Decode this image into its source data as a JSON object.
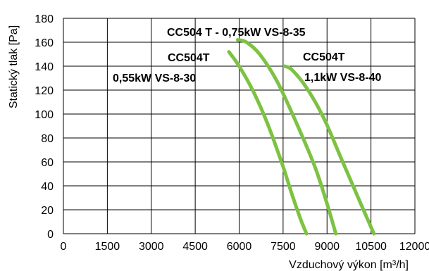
{
  "chart_data": {
    "type": "line",
    "xlabel": "Vzduchový výkon [m³/h]",
    "ylabel": "Statický tlak [Pa]",
    "xlim": [
      0,
      12000
    ],
    "ylim": [
      0,
      180
    ],
    "xticks": [
      0,
      1500,
      3000,
      4500,
      6000,
      7500,
      9000,
      10500,
      12000
    ],
    "yticks": [
      0,
      20,
      40,
      60,
      80,
      100,
      120,
      140,
      160,
      180
    ],
    "grid": true,
    "line_color": "#7dc242",
    "series": [
      {
        "name_lines": [
          "CC504T",
          "0,55kW VS-8-30"
        ],
        "x": [
          5650,
          6000,
          6500,
          7000,
          7500,
          7800,
          8100,
          8300
        ],
        "y": [
          152,
          140,
          118,
          90,
          56,
          33,
          12,
          0
        ]
      },
      {
        "name_lines": [
          "CC504 T - 0,75kW VS-8-35"
        ],
        "x": [
          5950,
          6250,
          6700,
          7300,
          8000,
          8600,
          9000,
          9300
        ],
        "y": [
          162,
          160,
          150,
          127,
          90,
          55,
          25,
          0
        ]
      },
      {
        "name_lines": [
          "CC504T",
          "1,1kW VS-8-40"
        ],
        "x": [
          7550,
          7800,
          8300,
          8900,
          9500,
          10100,
          10600
        ],
        "y": [
          140,
          137,
          122,
          96,
          62,
          28,
          0
        ]
      }
    ]
  }
}
